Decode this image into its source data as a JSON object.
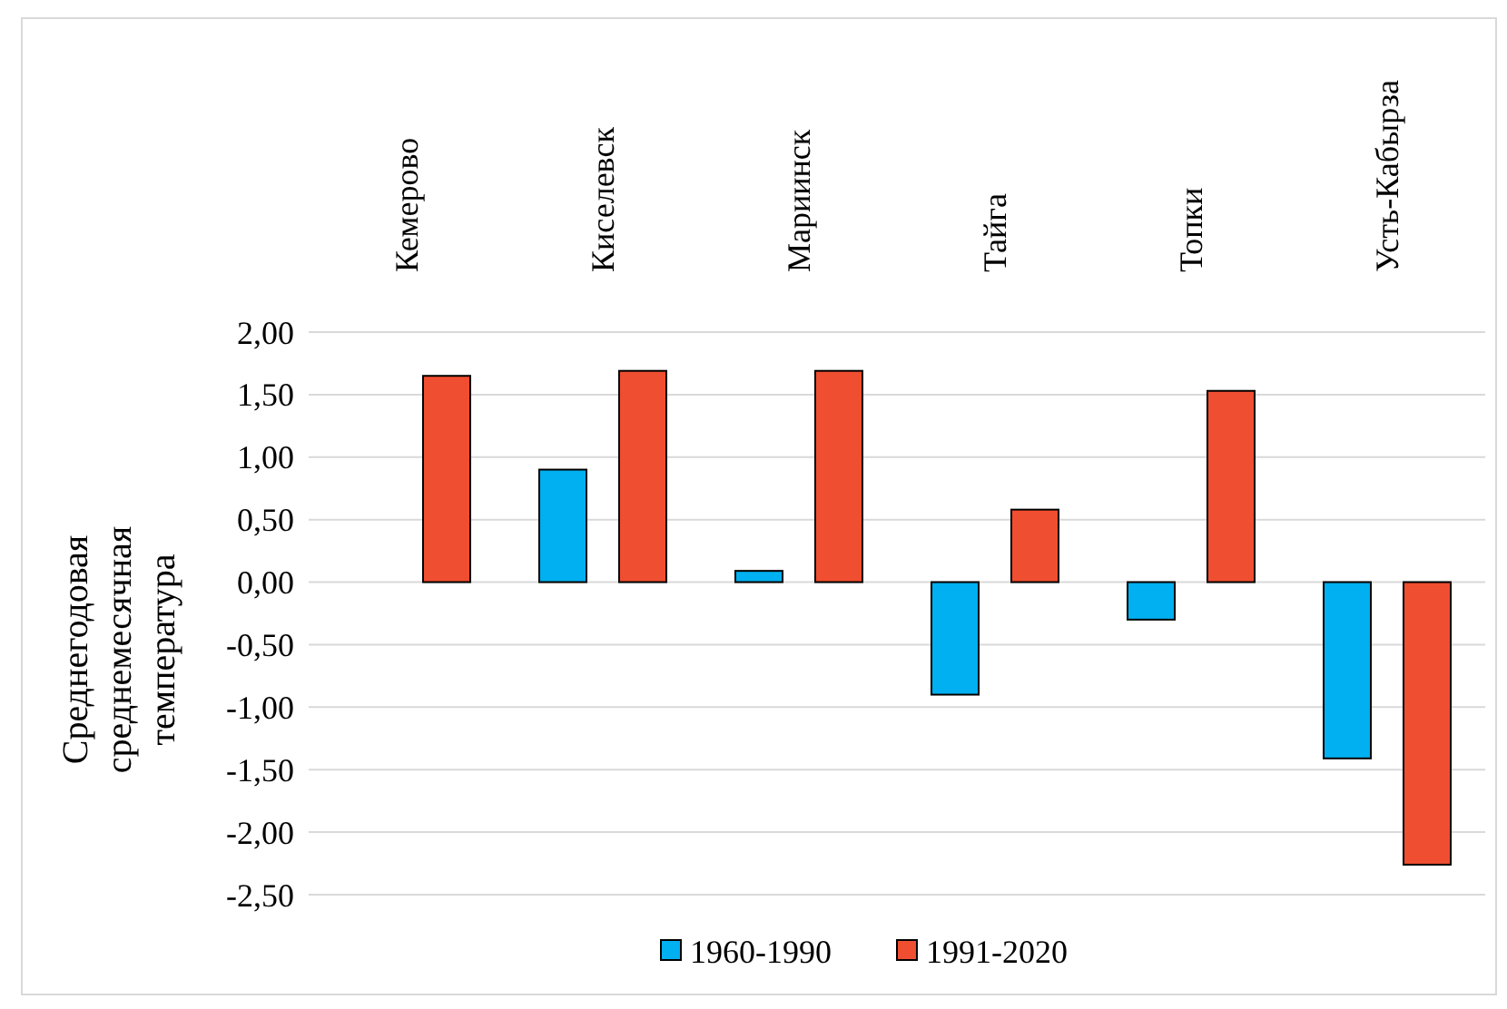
{
  "chart_data": {
    "type": "bar",
    "ylabel": "Среднегодовая среднемесячная температура",
    "categories": [
      "Кемерово",
      "Киселевск",
      "Мариинск",
      "Тайга",
      "Топки",
      "Усть-Кабырза"
    ],
    "series": [
      {
        "name": "1960-1990",
        "color": "#00b0f0",
        "values": [
          null,
          0.9,
          0.09,
          -0.9,
          -0.3,
          -1.41
        ]
      },
      {
        "name": "1991-2020",
        "color": "#f04e30",
        "values": [
          1.65,
          1.69,
          1.69,
          0.58,
          1.53,
          -2.26
        ]
      }
    ],
    "ylim": [
      -2.5,
      2
    ],
    "yticks": [
      {
        "value": -2.5,
        "label": "-2,50"
      },
      {
        "value": -2,
        "label": "-2,00"
      },
      {
        "value": -1.5,
        "label": "-1,50"
      },
      {
        "value": -1,
        "label": "-1,00"
      },
      {
        "value": -0.5,
        "label": "-0,50"
      },
      {
        "value": 0,
        "label": "0,00"
      },
      {
        "value": 0.5,
        "label": "0,50"
      },
      {
        "value": 1,
        "label": "1,00"
      },
      {
        "value": 1.5,
        "label": "1,50"
      },
      {
        "value": 2,
        "label": "2,00"
      }
    ],
    "grid": "y",
    "legend": "bottom"
  }
}
